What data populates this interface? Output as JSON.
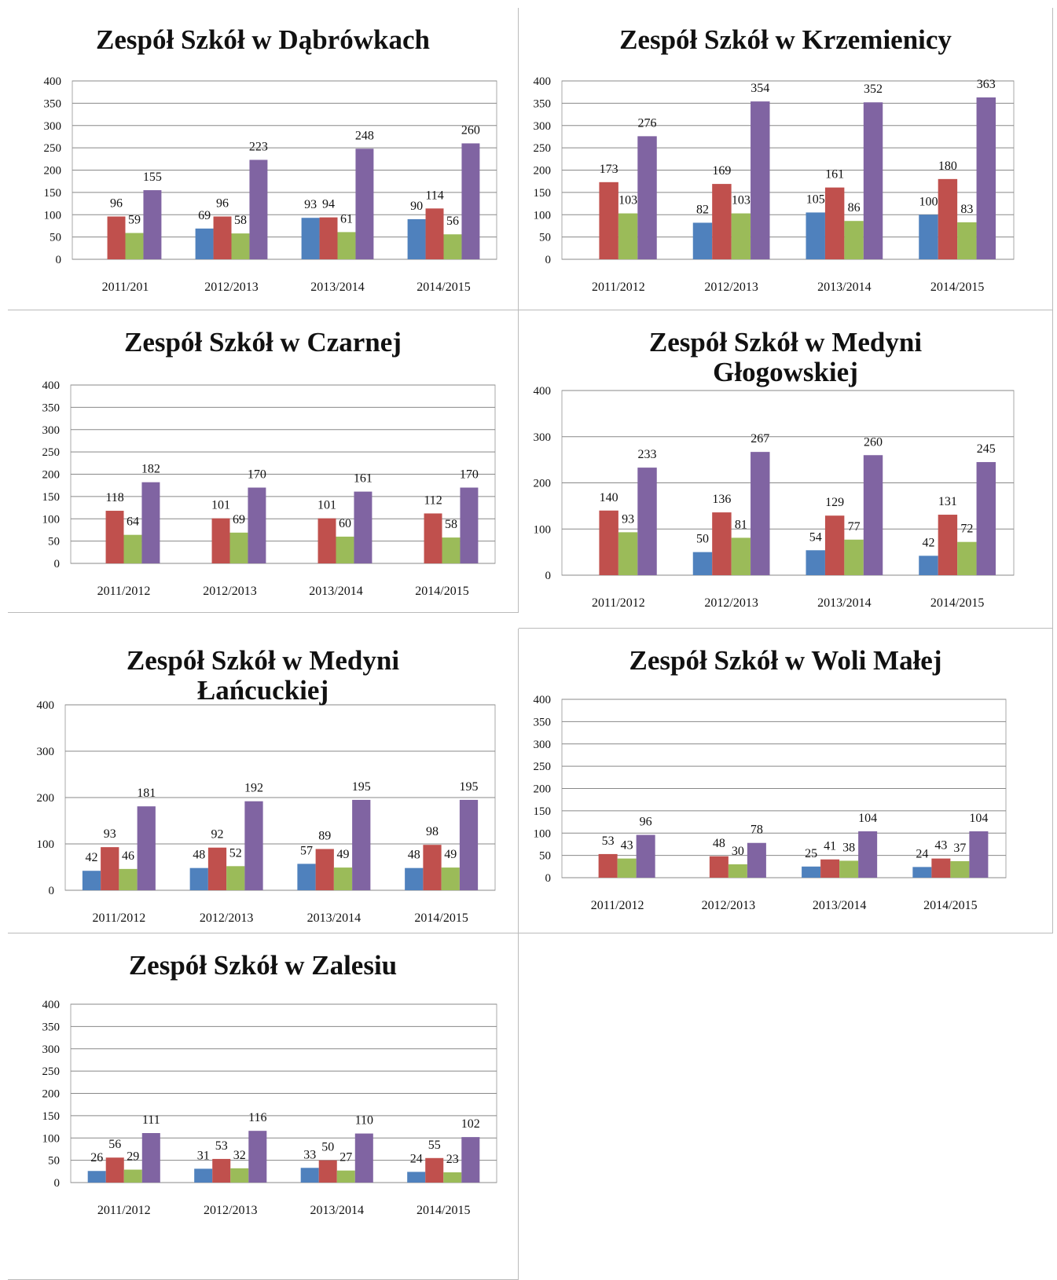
{
  "chart_data": [
    {
      "type": "bar",
      "title": "Zespół Szkół w Dąbrówkach",
      "categories": [
        "2011/201",
        "2012/2013",
        "2013/2014",
        "2014/2015"
      ],
      "series": [
        {
          "color": "#4f81bd",
          "values": [
            null,
            69,
            93,
            90
          ]
        },
        {
          "color": "#c0504d",
          "values": [
            96,
            96,
            94,
            114
          ]
        },
        {
          "color": "#9bbb59",
          "values": [
            59,
            58,
            61,
            56
          ]
        },
        {
          "color": "#8064a2",
          "values": [
            155,
            223,
            248,
            260
          ]
        }
      ],
      "ylim": [
        0,
        400
      ],
      "yticks": [
        0,
        50,
        100,
        150,
        200,
        250,
        300,
        350,
        400
      ],
      "grid": true
    },
    {
      "type": "bar",
      "title": "Zespół Szkół w Krzemienicy",
      "categories": [
        "2011/2012",
        "2012/2013",
        "2013/2014",
        "2014/2015"
      ],
      "series": [
        {
          "color": "#4f81bd",
          "values": [
            null,
            82,
            105,
            100
          ]
        },
        {
          "color": "#c0504d",
          "values": [
            173,
            169,
            161,
            180
          ]
        },
        {
          "color": "#9bbb59",
          "values": [
            103,
            103,
            86,
            83
          ]
        },
        {
          "color": "#8064a2",
          "values": [
            276,
            354,
            352,
            363
          ]
        }
      ],
      "ylim": [
        0,
        400
      ],
      "yticks": [
        0,
        50,
        100,
        150,
        200,
        250,
        300,
        350,
        400
      ],
      "grid": true
    },
    {
      "type": "bar",
      "title": "Zespół Szkół w Czarnej",
      "categories": [
        "2011/2012",
        "2012/2013",
        "2013/2014",
        "2014/2015"
      ],
      "series": [
        {
          "color": "#4f81bd",
          "values": [
            null,
            null,
            null,
            null
          ]
        },
        {
          "color": "#c0504d",
          "values": [
            118,
            101,
            101,
            112
          ]
        },
        {
          "color": "#9bbb59",
          "values": [
            64,
            69,
            60,
            58
          ]
        },
        {
          "color": "#8064a2",
          "values": [
            182,
            170,
            161,
            170
          ]
        }
      ],
      "ylim": [
        0,
        400
      ],
      "yticks": [
        0,
        50,
        100,
        150,
        200,
        250,
        300,
        350,
        400
      ],
      "grid": true
    },
    {
      "type": "bar",
      "title": "Zespół Szkół w Medyni Głogowskiej",
      "categories": [
        "2011/2012",
        "2012/2013",
        "2013/2014",
        "2014/2015"
      ],
      "series": [
        {
          "color": "#4f81bd",
          "values": [
            null,
            50,
            54,
            42
          ]
        },
        {
          "color": "#c0504d",
          "values": [
            140,
            136,
            129,
            131
          ]
        },
        {
          "color": "#9bbb59",
          "values": [
            93,
            81,
            77,
            72
          ]
        },
        {
          "color": "#8064a2",
          "values": [
            233,
            267,
            260,
            245
          ]
        }
      ],
      "ylim": [
        0,
        400
      ],
      "yticks": [
        0,
        100,
        200,
        300,
        400
      ],
      "grid": true
    },
    {
      "type": "bar",
      "title": "Zespół Szkół w Medyni Łańcuckiej",
      "categories": [
        "2011/2012",
        "2012/2013",
        "2013/2014",
        "2014/2015"
      ],
      "series": [
        {
          "color": "#4f81bd",
          "values": [
            42,
            48,
            57,
            48
          ]
        },
        {
          "color": "#c0504d",
          "values": [
            93,
            92,
            89,
            98
          ]
        },
        {
          "color": "#9bbb59",
          "values": [
            46,
            52,
            49,
            49
          ]
        },
        {
          "color": "#8064a2",
          "values": [
            181,
            192,
            195,
            195
          ]
        }
      ],
      "ylim": [
        0,
        400
      ],
      "yticks": [
        0,
        100,
        200,
        300,
        400
      ],
      "grid": true
    },
    {
      "type": "bar",
      "title": "Zespół Szkół w Woli Małej",
      "categories": [
        "2011/2012",
        "2012/2013",
        "2013/2014",
        "2014/2015"
      ],
      "series": [
        {
          "color": "#4f81bd",
          "values": [
            null,
            null,
            25,
            24
          ]
        },
        {
          "color": "#c0504d",
          "values": [
            53,
            48,
            41,
            43
          ]
        },
        {
          "color": "#9bbb59",
          "values": [
            43,
            30,
            38,
            37
          ]
        },
        {
          "color": "#8064a2",
          "values": [
            96,
            78,
            104,
            104
          ]
        }
      ],
      "ylim": [
        0,
        400
      ],
      "yticks": [
        0,
        50,
        100,
        150,
        200,
        250,
        300,
        350,
        400
      ],
      "grid": true
    },
    {
      "type": "bar",
      "title": "Zespół Szkół w Zalesiu",
      "categories": [
        "2011/2012",
        "2012/2013",
        "2013/2014",
        "2014/2015"
      ],
      "series": [
        {
          "color": "#4f81bd",
          "values": [
            26,
            31,
            33,
            24
          ]
        },
        {
          "color": "#c0504d",
          "values": [
            56,
            53,
            50,
            55
          ]
        },
        {
          "color": "#9bbb59",
          "values": [
            29,
            32,
            27,
            23
          ]
        },
        {
          "color": "#8064a2",
          "values": [
            111,
            116,
            110,
            102
          ]
        }
      ],
      "ylim": [
        0,
        400
      ],
      "yticks": [
        0,
        50,
        100,
        150,
        200,
        250,
        300,
        350,
        400
      ],
      "grid": true
    }
  ]
}
